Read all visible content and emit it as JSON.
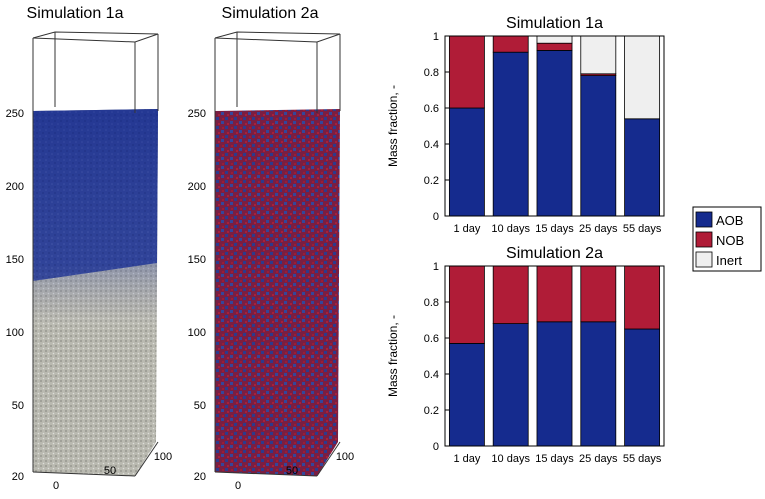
{
  "colors": {
    "aob": "#152b8e",
    "nob": "#b01c37",
    "inert": "#efefef"
  },
  "sims": [
    {
      "title": "Simulation 1a",
      "yticks": [
        "250",
        "200",
        "150",
        "100",
        "50",
        "20"
      ],
      "xticks": [
        "0",
        "50",
        "100"
      ],
      "pattern": "layered"
    },
    {
      "title": "Simulation 2a",
      "yticks": [
        "250",
        "200",
        "150",
        "100",
        "50",
        "20"
      ],
      "xticks": [
        "0",
        "50",
        "100"
      ],
      "pattern": "mixed"
    }
  ],
  "legend": [
    "AOB",
    "NOB",
    "Inert"
  ],
  "chart_data": [
    {
      "type": "bar",
      "stacked": true,
      "title": "Simulation 1a",
      "ylabel": "Mass fraction, -",
      "ylim": [
        0,
        1
      ],
      "yticks": [
        "0",
        "0.2",
        "0.4",
        "0.6",
        "0.8",
        "1"
      ],
      "categories": [
        "1 day",
        "10 days",
        "15 days",
        "25 days",
        "55 days"
      ],
      "series": [
        {
          "name": "AOB",
          "values": [
            0.6,
            0.91,
            0.92,
            0.78,
            0.54
          ]
        },
        {
          "name": "NOB",
          "values": [
            0.4,
            0.09,
            0.04,
            0.01,
            0.0
          ]
        },
        {
          "name": "Inert",
          "values": [
            0.0,
            0.0,
            0.04,
            0.21,
            0.46
          ]
        }
      ]
    },
    {
      "type": "bar",
      "stacked": true,
      "title": "Simulation 2a",
      "ylabel": "Mass fraction, -",
      "ylim": [
        0,
        1
      ],
      "yticks": [
        "0",
        "0.2",
        "0.4",
        "0.6",
        "0.8",
        "1"
      ],
      "categories": [
        "1 day",
        "10 days",
        "15 days",
        "25 days",
        "55 days"
      ],
      "series": [
        {
          "name": "AOB",
          "values": [
            0.57,
            0.68,
            0.69,
            0.69,
            0.65
          ]
        },
        {
          "name": "NOB",
          "values": [
            0.43,
            0.32,
            0.31,
            0.31,
            0.35
          ]
        },
        {
          "name": "Inert",
          "values": [
            0.0,
            0.0,
            0.0,
            0.0,
            0.0
          ]
        }
      ]
    }
  ]
}
